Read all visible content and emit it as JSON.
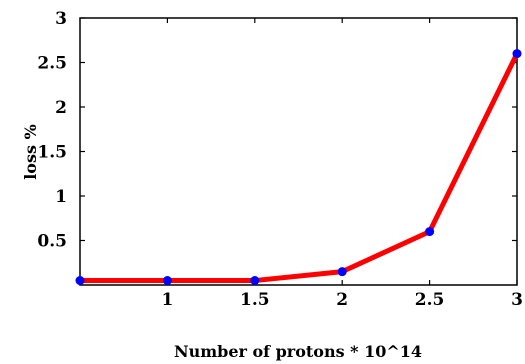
{
  "chart_data": {
    "type": "line",
    "title": "",
    "xlabel": "Number of protons * 10^14",
    "ylabel": "loss  %",
    "xlim": [
      0.5,
      3
    ],
    "ylim": [
      0,
      3
    ],
    "x_ticks": [
      1,
      1.5,
      2,
      2.5,
      3
    ],
    "x_tick_labels": [
      "1",
      "1.5",
      "2",
      "2.5",
      "3"
    ],
    "y_ticks": [
      0.5,
      1,
      1.5,
      2,
      2.5,
      3
    ],
    "y_tick_labels": [
      "0.5",
      "1",
      "1.5",
      "2",
      "2.5",
      "3"
    ],
    "grid": false,
    "legend": "none",
    "series": [
      {
        "x": [
          0.5,
          1,
          1.5,
          2,
          2.5,
          3
        ],
        "values": [
          0.05,
          0.05,
          0.05,
          0.15,
          0.6,
          2.6
        ],
        "line_color": "#ff0000",
        "marker_color": "#0000ff"
      }
    ]
  }
}
